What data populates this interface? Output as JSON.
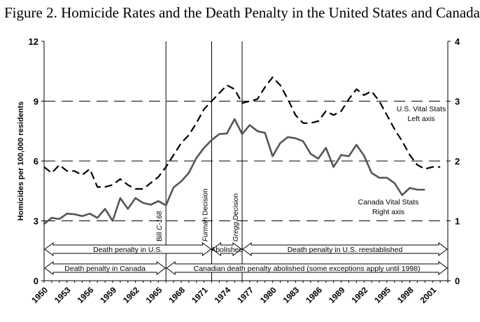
{
  "title": "Figure 2. Homicide Rates and the Death Penalty in the United States and Canada",
  "chart_data": {
    "type": "line",
    "ylabel": "Homicides per 100,000 residents",
    "ylim_left": [
      0,
      12
    ],
    "ylim_right": [
      0,
      4
    ],
    "yticks_left": [
      "0",
      "3",
      "6",
      "9",
      "12"
    ],
    "yticks_right": [
      "0",
      "1",
      "2",
      "3",
      "4"
    ],
    "xlim": [
      1950,
      2003
    ],
    "xticks": [
      "1950",
      "1953",
      "1956",
      "1959",
      "1962",
      "1965",
      "1968",
      "1971",
      "1974",
      "1977",
      "1980",
      "1983",
      "1986",
      "1989",
      "1992",
      "1995",
      "1998",
      "2001"
    ],
    "grid": "dashed horizontal at 3, 6, 9",
    "series": [
      {
        "name": "U.S. Vital Stats",
        "axis": "left",
        "style": "dashed",
        "x": [
          1950,
          1951,
          1952,
          1953,
          1954,
          1955,
          1956,
          1957,
          1958,
          1959,
          1960,
          1961,
          1962,
          1963,
          1964,
          1965,
          1966,
          1967,
          1968,
          1969,
          1970,
          1971,
          1972,
          1973,
          1974,
          1975,
          1976,
          1977,
          1978,
          1979,
          1980,
          1981,
          1982,
          1983,
          1984,
          1985,
          1986,
          1987,
          1988,
          1989,
          1990,
          1991,
          1992,
          1993,
          1994,
          1995,
          1996,
          1997,
          1998,
          1999,
          2000,
          2001,
          2002
        ],
        "values": [
          5.7,
          5.4,
          5.8,
          5.5,
          5.5,
          5.3,
          5.6,
          4.7,
          4.7,
          4.8,
          5.1,
          4.8,
          4.6,
          4.6,
          4.9,
          5.2,
          5.7,
          6.3,
          6.9,
          7.3,
          7.9,
          8.6,
          9.0,
          9.4,
          9.8,
          9.6,
          8.9,
          9.0,
          9.1,
          9.7,
          10.2,
          9.8,
          9.1,
          8.3,
          7.9,
          7.9,
          8.0,
          8.5,
          8.3,
          8.5,
          9.1,
          9.6,
          9.3,
          9.5,
          9.0,
          8.3,
          7.6,
          7.0,
          6.3,
          5.8,
          5.6,
          5.7,
          5.7
        ]
      },
      {
        "name": "Canada Vital Stats",
        "axis": "right",
        "style": "solid",
        "x": [
          1950,
          1951,
          1952,
          1953,
          1954,
          1955,
          1956,
          1957,
          1958,
          1959,
          1960,
          1961,
          1962,
          1963,
          1964,
          1965,
          1966,
          1967,
          1968,
          1969,
          1970,
          1971,
          1972,
          1973,
          1974,
          1975,
          1976,
          1977,
          1978,
          1979,
          1980,
          1981,
          1982,
          1983,
          1984,
          1985,
          1986,
          1987,
          1988,
          1989,
          1990,
          1991,
          1992,
          1993,
          1994,
          1995,
          1996,
          1997,
          1998,
          1999,
          2000
        ],
        "values": [
          0.95,
          1.05,
          1.03,
          1.12,
          1.11,
          1.08,
          1.12,
          1.05,
          1.2,
          1.0,
          1.38,
          1.2,
          1.38,
          1.3,
          1.27,
          1.33,
          1.26,
          1.56,
          1.66,
          1.8,
          2.05,
          2.22,
          2.35,
          2.45,
          2.46,
          2.7,
          2.45,
          2.6,
          2.5,
          2.47,
          2.08,
          2.3,
          2.4,
          2.38,
          2.33,
          2.12,
          2.04,
          2.22,
          1.9,
          2.1,
          2.08,
          2.27,
          2.09,
          1.8,
          1.72,
          1.72,
          1.63,
          1.43,
          1.55,
          1.52,
          1.52
        ]
      }
    ],
    "series_labels": [
      {
        "text": "U.S. Vital Stats",
        "sub": "Left axis"
      },
      {
        "text": "Canada Vital Stats",
        "sub": "Right axis"
      }
    ],
    "event_lines": [
      {
        "x": 1966,
        "label_prefix": "Bill ",
        "label_italic": "C-168",
        "label_suffix": ""
      },
      {
        "x": 1972,
        "label_prefix": "",
        "label_italic": "Furman",
        "label_suffix": " Decision"
      },
      {
        "x": 1976,
        "label_prefix": "",
        "label_italic": "Gregg",
        "label_suffix": " Decision"
      }
    ],
    "periods": [
      {
        "row": 1,
        "x0": 1950,
        "x1": 1972,
        "label": "Death penalty in U.S."
      },
      {
        "row": 1,
        "x0": 1972,
        "x1": 1976,
        "label": "Abolished"
      },
      {
        "row": 1,
        "x0": 1976,
        "x1": 2003,
        "label": "Death penalty in U.S. reestablished"
      },
      {
        "row": 2,
        "x0": 1950,
        "x1": 1966,
        "label": "Death penalty in Canada"
      },
      {
        "row": 2,
        "x0": 1966,
        "x1": 2003,
        "label": "Canadian death penalty abolished (some exceptions apply until 1998)"
      }
    ]
  }
}
